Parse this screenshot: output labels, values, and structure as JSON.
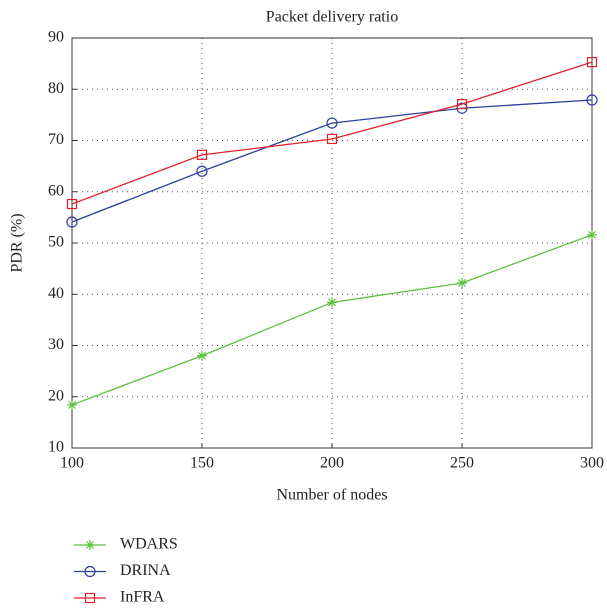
{
  "chart_data": {
    "type": "line",
    "title": "Packet delivery ratio",
    "xlabel": "Number of nodes",
    "ylabel": "PDR (%)",
    "x": [
      100,
      150,
      200,
      250,
      300
    ],
    "series": [
      {
        "name": "WDARS",
        "color": "#5cc040",
        "marker": "star",
        "values": [
          18.4,
          28,
          38.4,
          42.2,
          51.6
        ]
      },
      {
        "name": "DRINA",
        "color": "#2b3f9e",
        "marker": "circle",
        "values": [
          54.1,
          64,
          73.4,
          76.3,
          77.9
        ]
      },
      {
        "name": "InFRA",
        "color": "#e0202a",
        "marker": "square",
        "values": [
          57.6,
          67.2,
          70.3,
          77.1,
          85.3
        ]
      }
    ],
    "xlim": [
      100,
      300
    ],
    "xticks": [
      100,
      150,
      200,
      250,
      300
    ],
    "ylim": [
      10,
      90
    ],
    "yticks": [
      10,
      20,
      30,
      40,
      50,
      60,
      70,
      80,
      90
    ],
    "grid": true,
    "legend": "bottom-left"
  }
}
